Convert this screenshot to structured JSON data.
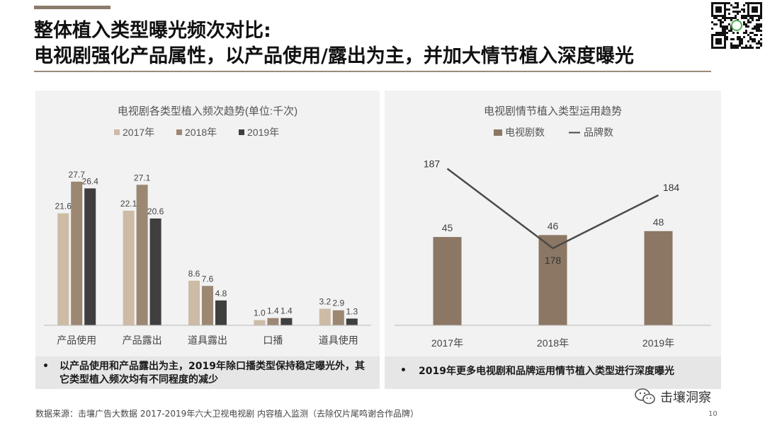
{
  "title": {
    "line1": "整体植入类型曝光频次对比:",
    "line2": "电视剧强化产品属性，以产品使用/露出为主，并加大情节植入深度曝光"
  },
  "chart_data": [
    {
      "type": "bar",
      "title": "电视剧各类型植入频次趋势(单位:千次)",
      "categories": [
        "产品使用",
        "产品露出",
        "道具露出",
        "口播",
        "道具使用"
      ],
      "series": [
        {
          "name": "2017年",
          "values": [
            21.6,
            22.1,
            8.6,
            1.0,
            3.2
          ]
        },
        {
          "name": "2018年",
          "values": [
            27.7,
            27.1,
            7.6,
            1.4,
            2.9
          ]
        },
        {
          "name": "2019年",
          "values": [
            26.4,
            20.6,
            4.8,
            1.4,
            1.3
          ]
        }
      ],
      "value_labels": {
        "2017年": [
          "21.6",
          "22.1",
          "8.6",
          "1.0",
          "3.2"
        ],
        "2018年": [
          "27.7",
          "27.1",
          "7.6",
          "1.4",
          "2.9"
        ],
        "2019年": [
          "26.4",
          "20.6",
          "4.8",
          "1.4",
          "1.3"
        ]
      },
      "colors": [
        "#cdbba6",
        "#9c8773",
        "#3f3f3f"
      ],
      "legend_position": "top",
      "ylim": [
        0,
        30
      ],
      "grid": false
    },
    {
      "type": "bar",
      "title": "电视剧情节植入类型运用趋势",
      "categories": [
        "2017年",
        "2018年",
        "2019年"
      ],
      "series": [
        {
          "name": "电视剧数",
          "kind": "bar",
          "values": [
            45,
            46,
            48
          ],
          "color": "#8b7763"
        },
        {
          "name": "品牌数",
          "kind": "line",
          "values": [
            187,
            178,
            184
          ],
          "color": "#4a4a4a"
        }
      ],
      "value_labels": {
        "电视剧数": [
          "45",
          "46",
          "48"
        ],
        "品牌数": [
          "187",
          "178",
          "184"
        ]
      },
      "legend_position": "top",
      "bar_ylim": [
        0,
        80
      ],
      "line_ylim": [
        176,
        188
      ],
      "grid": false
    }
  ],
  "bullets": {
    "left": "以产品使用和产品露出为主，2019年除口播类型保持稳定曝光外，其它类型植入频次均有不同程度的减少",
    "right": "2019年更多电视剧和品牌运用情节植入类型进行深度曝光",
    "marker": "•"
  },
  "source": "数据来源：击壤广告大数据  2017-2019年六大卫视电视剧 内容植入监测（去除仅片尾鸣谢合作品牌）",
  "brand": "击壤洞察",
  "page_number": "10",
  "icons": {
    "qr": "qr-code-icon",
    "wechat": "wechat-icon"
  }
}
